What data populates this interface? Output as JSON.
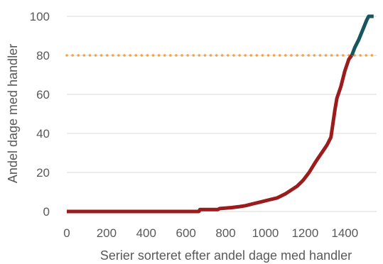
{
  "chart_data": {
    "type": "line",
    "title": "",
    "xlabel": "Serier sorteret efter andel dage med handler",
    "ylabel": "Andel dage med handler",
    "xlim": [
      0,
      1560
    ],
    "ylim": [
      0,
      100
    ],
    "xticks": [
      0,
      200,
      400,
      600,
      800,
      1000,
      1200,
      1400
    ],
    "yticks": [
      0,
      20,
      40,
      60,
      80,
      100
    ],
    "grid": "horizontal",
    "legend": "none",
    "reference_line": {
      "y": 80,
      "color": "#f4a340",
      "style": "dotted"
    },
    "series": [
      {
        "color": "#9b1c1c",
        "points": [
          [
            0,
            0
          ],
          [
            665,
            0
          ],
          [
            670,
            1
          ],
          [
            760,
            1
          ],
          [
            770,
            1.5
          ],
          [
            830,
            2
          ],
          [
            870,
            2.5
          ],
          [
            900,
            3
          ],
          [
            940,
            4
          ],
          [
            980,
            5
          ],
          [
            1020,
            6
          ],
          [
            1060,
            7
          ],
          [
            1100,
            9
          ],
          [
            1130,
            11
          ],
          [
            1160,
            13
          ],
          [
            1190,
            16
          ],
          [
            1220,
            20
          ],
          [
            1250,
            25
          ],
          [
            1270,
            28
          ],
          [
            1290,
            31
          ],
          [
            1310,
            34
          ],
          [
            1330,
            38
          ],
          [
            1340,
            45
          ],
          [
            1350,
            52
          ],
          [
            1360,
            58
          ],
          [
            1380,
            64
          ],
          [
            1400,
            72
          ],
          [
            1420,
            78
          ],
          [
            1435,
            80
          ]
        ]
      },
      {
        "color": "#17565f",
        "points": [
          [
            1435,
            80
          ],
          [
            1450,
            84
          ],
          [
            1470,
            88
          ],
          [
            1490,
            93
          ],
          [
            1510,
            98
          ],
          [
            1520,
            100
          ],
          [
            1545,
            100
          ]
        ]
      }
    ]
  }
}
